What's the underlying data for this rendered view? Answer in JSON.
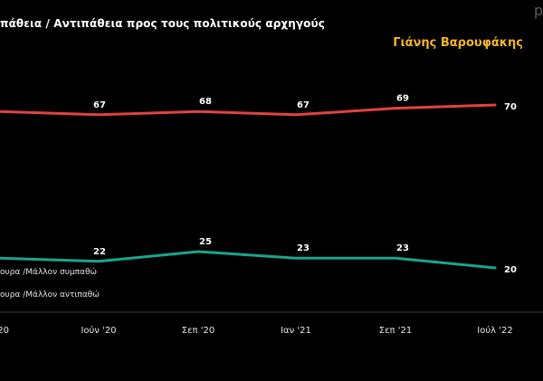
{
  "header": {
    "title": "πάθεια / Αντιπάθεια προς τους πολιτικούς αρχηγούς",
    "person": "Γιάνης Βαρουφάκης",
    "corner_mark": "p"
  },
  "colors": {
    "background": "#000000",
    "dislike": "#e0433f",
    "like": "#19a68a",
    "person": "#f5b52a"
  },
  "chart_data": {
    "type": "line",
    "title": "πάθεια / Αντιπάθεια προς τους πολιτικούς αρχηγούς",
    "subtitle": "Γιάνης Βαρουφάκης",
    "categories": [
      "20",
      "Ιούν '20",
      "Σεπ '20",
      "Ιαν '21",
      "Σεπ '21",
      "Ιούλ '22"
    ],
    "series": [
      {
        "name": "ουρα /Μάλλον αντιπαθώ",
        "color": "#e0433f",
        "values": [
          68,
          67,
          68,
          67,
          69,
          70
        ],
        "labels": [
          "",
          "67",
          "68",
          "67",
          "69",
          "70"
        ]
      },
      {
        "name": "ουρα /Μάλλον συμπαθώ",
        "color": "#19a68a",
        "values": [
          23,
          22,
          25,
          23,
          23,
          20
        ],
        "labels": [
          "",
          "22",
          "25",
          "23",
          "23",
          "20"
        ]
      }
    ],
    "legend_order": [
      "ουρα /Μάλλον συμπαθώ",
      "ουρα /Μάλλον αντιπαθώ"
    ],
    "legend": "bottom-left",
    "ylim": [
      0,
      100
    ],
    "grid": false
  }
}
